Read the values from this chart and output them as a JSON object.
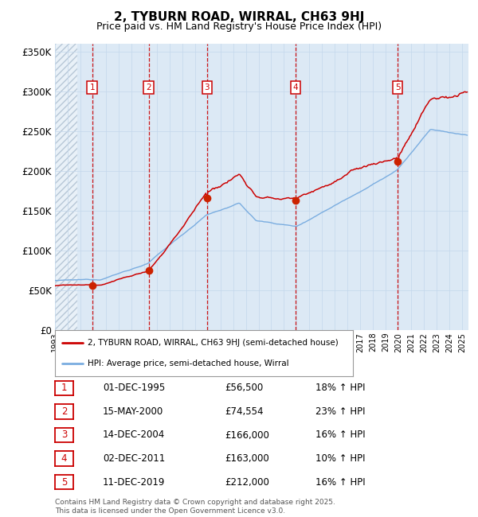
{
  "title": "2, TYBURN ROAD, WIRRAL, CH63 9HJ",
  "subtitle": "Price paid vs. HM Land Registry's House Price Index (HPI)",
  "bg_color": "#dce9f5",
  "grid_color": "#c5d8ec",
  "red_line_color": "#cc0000",
  "blue_line_color": "#7aade0",
  "dashed_line_color": "#cc0000",
  "ylim": [
    0,
    360000
  ],
  "yticks": [
    0,
    50000,
    100000,
    150000,
    200000,
    250000,
    300000,
    350000
  ],
  "ytick_labels": [
    "£0",
    "£50K",
    "£100K",
    "£150K",
    "£200K",
    "£250K",
    "£300K",
    "£350K"
  ],
  "xlim_start": 1993.0,
  "xlim_end": 2025.5,
  "sale_dates": [
    1995.92,
    2000.37,
    2004.95,
    2011.92,
    2019.94
  ],
  "sale_prices": [
    56500,
    74554,
    166000,
    163000,
    212000
  ],
  "sale_labels": [
    "1",
    "2",
    "3",
    "4",
    "5"
  ],
  "sale_info": [
    {
      "label": "1",
      "date": "01-DEC-1995",
      "price": "£56,500",
      "hpi": "18% ↑ HPI"
    },
    {
      "label": "2",
      "date": "15-MAY-2000",
      "price": "£74,554",
      "hpi": "23% ↑ HPI"
    },
    {
      "label": "3",
      "date": "14-DEC-2004",
      "price": "£166,000",
      "hpi": "16% ↑ HPI"
    },
    {
      "label": "4",
      "date": "02-DEC-2011",
      "price": "£163,000",
      "hpi": "10% ↑ HPI"
    },
    {
      "label": "5",
      "date": "11-DEC-2019",
      "price": "£212,000",
      "hpi": "16% ↑ HPI"
    }
  ],
  "legend_line1": "2, TYBURN ROAD, WIRRAL, CH63 9HJ (semi-detached house)",
  "legend_line2": "HPI: Average price, semi-detached house, Wirral",
  "footer": "Contains HM Land Registry data © Crown copyright and database right 2025.\nThis data is licensed under the Open Government Licence v3.0."
}
